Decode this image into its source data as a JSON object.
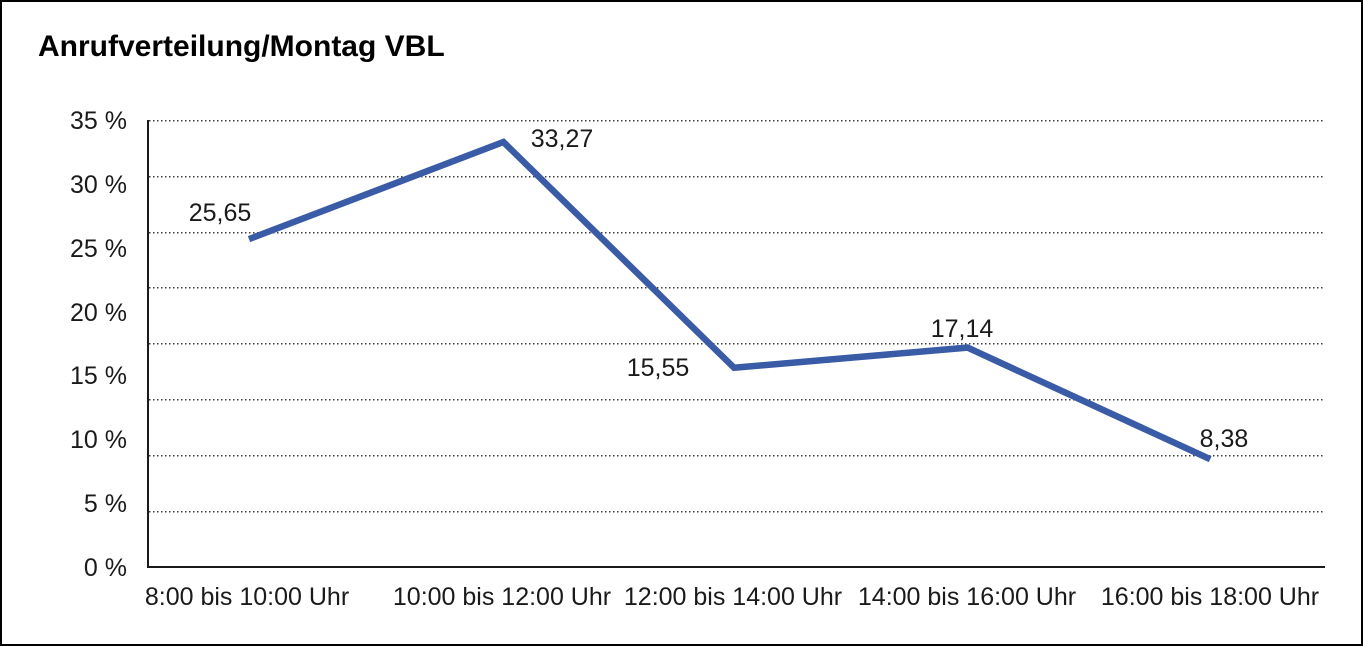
{
  "title": "Anrufverteilung/Montag VBL",
  "colors": {
    "line": "#3A5BA5",
    "background": "#ffffff",
    "frame_border": "#000000",
    "text": "#1a1a1a"
  },
  "chart_data": {
    "type": "line",
    "title": "Anrufverteilung/Montag VBL",
    "categories": [
      "8:00 bis 10:00 Uhr",
      "10:00 bis 12:00 Uhr",
      "12:00 bis 14:00 Uhr",
      "14:00 bis 16:00 Uhr",
      "16:00 bis 18:00 Uhr"
    ],
    "values": [
      25.65,
      33.27,
      15.55,
      17.14,
      8.38
    ],
    "value_labels": [
      "25,65",
      "33,27",
      "15,55",
      "17,14",
      "8,38"
    ],
    "unit": "%",
    "xlabel": "",
    "ylabel": "",
    "ylim": [
      0,
      35
    ],
    "y_tick_step": 5,
    "y_tick_labels": [
      "0 %",
      "5 %",
      "10 %",
      "15 %",
      "20 %",
      "25 %",
      "30 %",
      "35 %"
    ],
    "grid": "horizontal-dotted",
    "legend": "none",
    "line_color": "#3A5BA5",
    "markers": "none"
  }
}
